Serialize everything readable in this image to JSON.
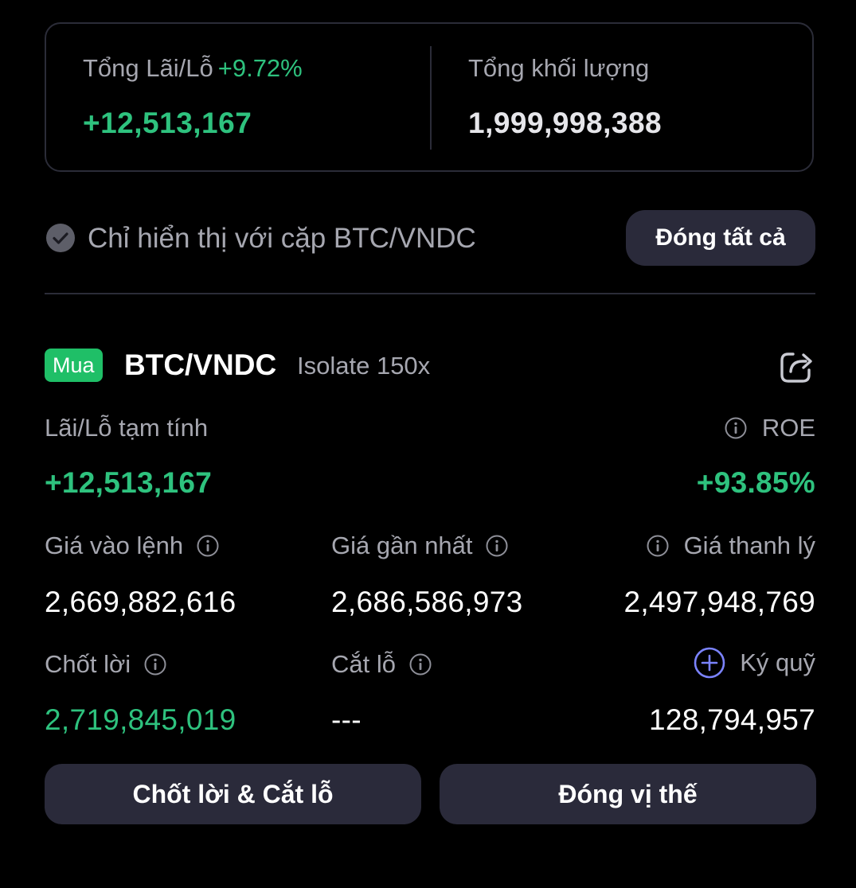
{
  "summary": {
    "pnl_label": "Tổng Lãi/Lỗ",
    "pnl_percent": "+9.72%",
    "pnl_value": "+12,513,167",
    "volume_label": "Tổng khối lượng",
    "volume_value": "1,999,998,388"
  },
  "filter": {
    "label": "Chỉ hiển thị với cặp BTC/VNDC",
    "close_all_label": "Đóng tất cả"
  },
  "position": {
    "side": "Mua",
    "pair": "BTC/VNDC",
    "leverage": "Isolate 150x",
    "pnl_label": "Lãi/Lỗ tạm tính",
    "pnl_value": "+12,513,167",
    "roe_label": "ROE",
    "roe_value": "+93.85%",
    "entry_price_label": "Giá vào lệnh",
    "entry_price": "2,669,882,616",
    "last_price_label": "Giá gần nhất",
    "last_price": "2,686,586,973",
    "liq_price_label": "Giá thanh lý",
    "liq_price": "2,497,948,769",
    "take_profit_label": "Chốt lời",
    "take_profit": "2,719,845,019",
    "stop_loss_label": "Cắt lỗ",
    "stop_loss": "---",
    "margin_label": "Ký quỹ",
    "margin": "128,794,957"
  },
  "actions": {
    "tp_sl_label": "Chốt lời & Cắt lỗ",
    "close_position_label": "Đóng vị thế"
  },
  "colors": {
    "background": "#000000",
    "profit_green": "#2ec27e",
    "badge_green": "#1fbf67",
    "button_bg": "#2a2a3a",
    "muted_text": "#a6a7b0",
    "accent_blue": "#7b83ff"
  },
  "icons": [
    "check-circle-icon",
    "share-icon",
    "info-icon",
    "plus-circle-icon"
  ]
}
